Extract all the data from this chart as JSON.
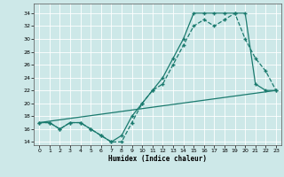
{
  "xlabel": "Humidex (Indice chaleur)",
  "background_color": "#cde8e8",
  "grid_color": "#ffffff",
  "line_color": "#1a7a6e",
  "xlim": [
    -0.5,
    23.5
  ],
  "ylim": [
    13.5,
    35.5
  ],
  "line1_x": [
    0,
    1,
    2,
    3,
    4,
    5,
    6,
    7,
    8,
    9,
    10,
    11,
    12,
    13,
    14,
    15,
    16,
    17,
    18,
    19,
    20,
    21,
    22,
    23
  ],
  "line1_y": [
    17,
    17,
    16,
    17,
    17,
    16,
    15,
    14,
    14,
    17,
    20,
    22,
    23,
    26,
    29,
    32,
    33,
    32,
    33,
    34,
    30,
    27,
    25,
    22
  ],
  "line1_style": "--",
  "line1_marker": "+",
  "line2_x": [
    0,
    1,
    2,
    3,
    4,
    5,
    6,
    7,
    8,
    9,
    10,
    11,
    12,
    13,
    14,
    15,
    16,
    17,
    18,
    19,
    20,
    21,
    22,
    23
  ],
  "line2_y": [
    17,
    17,
    16,
    17,
    17,
    16,
    15,
    14,
    15,
    18,
    20,
    22,
    24,
    27,
    30,
    34,
    34,
    34,
    34,
    34,
    34,
    23,
    22,
    22
  ],
  "line2_style": "-",
  "line2_marker": "+",
  "line3_x": [
    0,
    23
  ],
  "line3_y": [
    17,
    22
  ],
  "line3_style": "-",
  "line3_marker": null
}
